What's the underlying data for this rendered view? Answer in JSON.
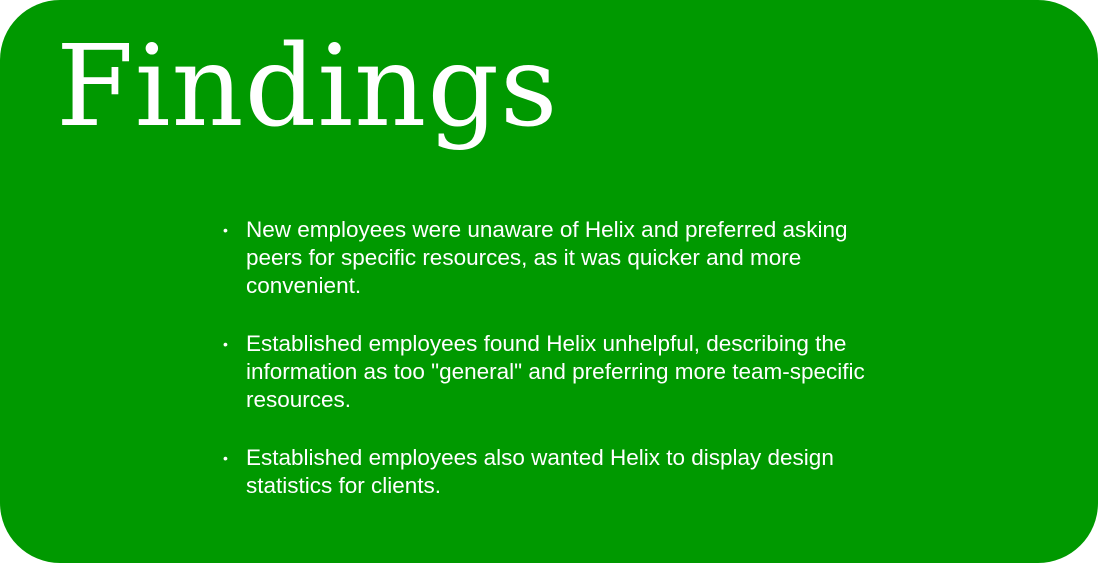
{
  "title": "Findings",
  "bullet_glyph": "•",
  "findings": [
    "New employees were unaware of Helix and preferred asking peers for specific resources, as it was quicker and more convenient.",
    "Established employees found Helix unhelpful, describing the information as too \"general\" and preferring more team-specific resources.",
    "Established employees also wanted Helix to display design statistics for clients."
  ],
  "colors": {
    "background": "#009900",
    "text": "#ffffff"
  }
}
